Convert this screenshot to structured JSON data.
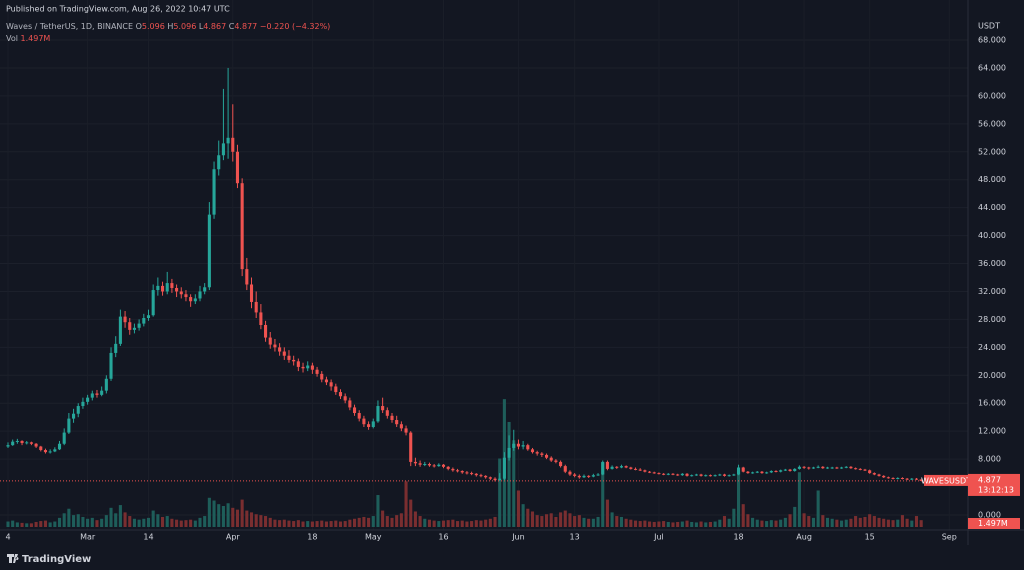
{
  "chart_data": {
    "type": "candlestick",
    "published": "Published on TradingView.com, Aug 26, 2022 10:47 UTC",
    "symbol": "Waves / TetherUS, 1D, BINANCE",
    "ohlc_letters": [
      "O",
      "H",
      "L",
      "C"
    ],
    "change": "−0.220 (−4.32%)",
    "volume_title": "Vol",
    "volume_label": "1.497M",
    "price_tag": "WAVESUSDT",
    "countdown": "13:12:13",
    "currency": "USDT",
    "brand": "TradingView",
    "up_color": "#26a69a",
    "down_color": "#ef5350",
    "volume_up_color": "#1e5e5a",
    "volume_down_color": "#7a2e30",
    "grid": true,
    "ylim": [
      0,
      68
    ],
    "yticks": [
      {
        "value": 0,
        "label": "0.000"
      },
      {
        "value": 8,
        "label": "8.000"
      },
      {
        "value": 12,
        "label": "12.000"
      },
      {
        "value": 16,
        "label": "16.000"
      },
      {
        "value": 20,
        "label": "20.000"
      },
      {
        "value": 24,
        "label": "24.000"
      },
      {
        "value": 28,
        "label": "28.000"
      },
      {
        "value": 32,
        "label": "32.000"
      },
      {
        "value": 36,
        "label": "36.000"
      },
      {
        "value": 40,
        "label": "40.000"
      },
      {
        "value": 44,
        "label": "44.000"
      },
      {
        "value": 48,
        "label": "48.000"
      },
      {
        "value": 52,
        "label": "52.000"
      },
      {
        "value": 56,
        "label": "56.000"
      },
      {
        "value": 60,
        "label": "60.000"
      },
      {
        "value": 64,
        "label": "64.000"
      },
      {
        "value": 68,
        "label": "68.000"
      }
    ],
    "volume_lim": [
      0,
      30
    ],
    "xlim": [
      0,
      205
    ],
    "xticks": [
      {
        "value": 0,
        "label": "4"
      },
      {
        "value": 17,
        "label": "Mar"
      },
      {
        "value": 30,
        "label": "14"
      },
      {
        "value": 48,
        "label": "Apr"
      },
      {
        "value": 65,
        "label": "18"
      },
      {
        "value": 78,
        "label": "May"
      },
      {
        "value": 93,
        "label": "16"
      },
      {
        "value": 109,
        "label": "Jun"
      },
      {
        "value": 121,
        "label": "13"
      },
      {
        "value": 139,
        "label": "Jul"
      },
      {
        "value": 156,
        "label": "18"
      },
      {
        "value": 170,
        "label": "Aug"
      },
      {
        "value": 184,
        "label": "15"
      },
      {
        "value": 201,
        "label": "Sep"
      }
    ],
    "candles": [
      [
        9.8,
        10.4,
        9.6,
        10.0,
        1.2
      ],
      [
        10.0,
        10.8,
        9.9,
        10.5,
        1.4
      ],
      [
        10.5,
        10.9,
        10.2,
        10.6,
        1.0
      ],
      [
        10.6,
        10.7,
        10.0,
        10.3,
        0.9
      ],
      [
        10.3,
        10.6,
        10.1,
        10.4,
        0.8
      ],
      [
        10.4,
        10.5,
        10.0,
        10.2,
        0.8
      ],
      [
        10.2,
        10.3,
        9.6,
        9.8,
        1.1
      ],
      [
        9.8,
        9.9,
        9.1,
        9.3,
        1.3
      ],
      [
        9.3,
        9.5,
        8.8,
        9.0,
        1.4
      ],
      [
        9.0,
        9.4,
        8.8,
        9.1,
        1.0
      ],
      [
        9.1,
        9.7,
        9.0,
        9.4,
        1.2
      ],
      [
        9.4,
        10.6,
        9.3,
        10.2,
        2.0
      ],
      [
        10.2,
        12.4,
        10.0,
        11.8,
        3.0
      ],
      [
        11.8,
        14.6,
        11.6,
        13.8,
        4.0
      ],
      [
        13.8,
        15.2,
        13.2,
        14.5,
        2.6
      ],
      [
        14.5,
        16.0,
        14.0,
        15.6,
        2.8
      ],
      [
        15.6,
        16.8,
        15.2,
        16.2,
        2.2
      ],
      [
        16.2,
        17.2,
        15.8,
        16.8,
        1.8
      ],
      [
        16.8,
        17.8,
        16.4,
        17.4,
        2.0
      ],
      [
        17.4,
        17.9,
        16.8,
        17.2,
        1.5
      ],
      [
        17.2,
        18.4,
        17.0,
        17.8,
        1.8
      ],
      [
        17.8,
        20.0,
        17.4,
        19.5,
        2.6
      ],
      [
        19.5,
        24.0,
        19.2,
        23.2,
        4.2
      ],
      [
        23.2,
        25.6,
        22.6,
        24.5,
        3.0
      ],
      [
        24.5,
        29.4,
        24.2,
        28.4,
        4.8
      ],
      [
        28.4,
        29.2,
        26.8,
        27.6,
        3.2
      ],
      [
        27.6,
        28.2,
        25.8,
        26.5,
        2.4
      ],
      [
        26.5,
        27.4,
        26.0,
        26.8,
        1.8
      ],
      [
        26.8,
        28.0,
        26.4,
        27.4,
        1.6
      ],
      [
        27.4,
        28.8,
        27.0,
        28.2,
        1.8
      ],
      [
        28.2,
        29.4,
        27.8,
        28.6,
        2.0
      ],
      [
        28.6,
        33.0,
        28.4,
        32.2,
        3.6
      ],
      [
        32.2,
        34.0,
        31.4,
        32.8,
        2.8
      ],
      [
        32.8,
        33.4,
        31.4,
        32.0,
        2.2
      ],
      [
        32.0,
        34.8,
        31.6,
        33.2,
        2.4
      ],
      [
        33.2,
        33.8,
        31.8,
        32.5,
        1.8
      ],
      [
        32.5,
        33.0,
        31.2,
        32.0,
        1.6
      ],
      [
        32.0,
        32.6,
        31.0,
        31.6,
        1.4
      ],
      [
        31.6,
        32.2,
        30.6,
        31.2,
        1.5
      ],
      [
        31.2,
        31.6,
        29.8,
        30.6,
        1.6
      ],
      [
        30.6,
        31.6,
        30.2,
        31.0,
        1.4
      ],
      [
        31.0,
        32.8,
        30.6,
        32.0,
        2.0
      ],
      [
        32.0,
        33.2,
        31.6,
        32.6,
        2.4
      ],
      [
        32.6,
        44.8,
        32.2,
        43.0,
        6.4
      ],
      [
        43.0,
        50.6,
        42.4,
        49.5,
        5.8
      ],
      [
        49.5,
        53.6,
        48.6,
        51.5,
        5.0
      ],
      [
        51.5,
        61.0,
        50.8,
        53.2,
        4.6
      ],
      [
        53.2,
        64.0,
        51.0,
        54.0,
        5.2
      ],
      [
        54.0,
        58.8,
        50.6,
        52.0,
        4.2
      ],
      [
        52.0,
        53.0,
        46.8,
        47.5,
        3.8
      ],
      [
        47.5,
        48.2,
        34.2,
        35.2,
        6.0
      ],
      [
        35.2,
        36.8,
        32.2,
        33.0,
        3.6
      ],
      [
        33.0,
        34.0,
        29.6,
        30.5,
        3.2
      ],
      [
        30.5,
        32.0,
        28.2,
        29.0,
        2.8
      ],
      [
        29.0,
        30.2,
        26.6,
        27.2,
        2.6
      ],
      [
        27.2,
        27.8,
        24.8,
        25.4,
        2.4
      ],
      [
        25.4,
        26.2,
        23.8,
        24.4,
        2.0
      ],
      [
        24.4,
        25.2,
        23.4,
        24.0,
        1.6
      ],
      [
        24.0,
        24.6,
        22.8,
        23.4,
        1.5
      ],
      [
        23.4,
        24.0,
        22.2,
        22.8,
        1.6
      ],
      [
        22.8,
        23.6,
        21.8,
        22.2,
        1.4
      ],
      [
        22.2,
        22.8,
        21.4,
        22.0,
        1.3
      ],
      [
        22.0,
        22.4,
        20.6,
        21.2,
        1.5
      ],
      [
        21.2,
        21.8,
        20.4,
        21.0,
        1.2
      ],
      [
        21.0,
        22.0,
        20.6,
        21.4,
        1.3
      ],
      [
        21.4,
        21.8,
        20.2,
        20.8,
        1.2
      ],
      [
        20.8,
        21.2,
        19.8,
        20.2,
        1.3
      ],
      [
        20.2,
        20.6,
        19.0,
        19.4,
        1.4
      ],
      [
        19.4,
        19.8,
        18.6,
        19.0,
        1.2
      ],
      [
        19.0,
        19.4,
        17.8,
        18.4,
        1.3
      ],
      [
        18.4,
        18.8,
        17.2,
        17.6,
        1.4
      ],
      [
        17.6,
        18.0,
        16.6,
        17.0,
        1.2
      ],
      [
        17.0,
        17.4,
        16.0,
        16.4,
        1.3
      ],
      [
        16.4,
        16.8,
        15.0,
        15.4,
        1.6
      ],
      [
        15.4,
        15.8,
        14.2,
        14.6,
        1.8
      ],
      [
        14.6,
        15.0,
        13.4,
        13.8,
        2.0
      ],
      [
        13.8,
        14.2,
        12.6,
        13.0,
        2.2
      ],
      [
        13.0,
        13.4,
        12.2,
        12.6,
        2.0
      ],
      [
        12.6,
        13.8,
        12.4,
        13.4,
        2.4
      ],
      [
        13.4,
        16.4,
        13.2,
        15.6,
        7.0
      ],
      [
        15.6,
        16.8,
        14.6,
        15.0,
        3.6
      ],
      [
        15.0,
        15.4,
        13.8,
        14.2,
        2.4
      ],
      [
        14.2,
        14.6,
        13.2,
        13.6,
        2.0
      ],
      [
        13.6,
        14.2,
        12.6,
        13.0,
        2.6
      ],
      [
        13.0,
        13.4,
        12.0,
        12.4,
        3.0
      ],
      [
        12.4,
        12.8,
        11.4,
        11.8,
        10.0
      ],
      [
        11.8,
        12.0,
        7.0,
        7.6,
        6.0
      ],
      [
        7.6,
        8.2,
        7.0,
        7.4,
        3.4
      ],
      [
        7.4,
        7.8,
        6.9,
        7.2,
        2.4
      ],
      [
        7.2,
        7.6,
        7.0,
        7.3,
        1.8
      ],
      [
        7.3,
        7.5,
        6.9,
        7.1,
        1.6
      ],
      [
        7.1,
        7.3,
        6.8,
        7.0,
        1.4
      ],
      [
        7.0,
        7.4,
        6.9,
        7.2,
        1.3
      ],
      [
        7.2,
        7.3,
        6.7,
        6.9,
        1.4
      ],
      [
        6.9,
        7.0,
        6.4,
        6.6,
        1.5
      ],
      [
        6.6,
        6.8,
        6.2,
        6.4,
        1.6
      ],
      [
        6.4,
        6.6,
        6.1,
        6.3,
        1.3
      ],
      [
        6.3,
        6.4,
        5.9,
        6.1,
        1.4
      ],
      [
        6.1,
        6.3,
        5.8,
        6.0,
        1.2
      ],
      [
        6.0,
        6.2,
        5.7,
        5.9,
        1.3
      ],
      [
        5.9,
        6.0,
        5.5,
        5.7,
        1.5
      ],
      [
        5.7,
        5.9,
        5.4,
        5.6,
        1.4
      ],
      [
        5.6,
        5.7,
        5.2,
        5.4,
        1.6
      ],
      [
        5.4,
        5.5,
        5.0,
        5.2,
        1.8
      ],
      [
        5.2,
        5.4,
        4.8,
        5.0,
        2.2
      ],
      [
        5.0,
        6.0,
        4.9,
        5.2,
        15.0
      ],
      [
        5.2,
        9.0,
        5.0,
        8.2,
        28.0
      ],
      [
        8.2,
        11.4,
        7.8,
        9.6,
        23.0
      ],
      [
        9.6,
        12.2,
        9.2,
        10.2,
        19.0
      ],
      [
        10.2,
        10.8,
        9.4,
        9.8,
        8.0
      ],
      [
        9.8,
        10.6,
        9.4,
        10.0,
        5.0
      ],
      [
        10.0,
        10.2,
        9.2,
        9.4,
        4.0
      ],
      [
        9.4,
        9.6,
        8.8,
        9.0,
        3.4
      ],
      [
        9.0,
        9.2,
        8.5,
        8.8,
        2.6
      ],
      [
        8.8,
        9.0,
        8.3,
        8.6,
        2.4
      ],
      [
        8.6,
        8.8,
        8.0,
        8.2,
        2.8
      ],
      [
        8.2,
        8.4,
        7.6,
        7.8,
        3.0
      ],
      [
        7.8,
        8.0,
        7.4,
        7.6,
        2.2
      ],
      [
        7.6,
        7.8,
        6.8,
        7.0,
        3.2
      ],
      [
        7.0,
        7.2,
        6.0,
        6.2,
        3.6
      ],
      [
        6.2,
        6.4,
        5.6,
        5.8,
        3.0
      ],
      [
        5.8,
        6.0,
        5.4,
        5.6,
        2.4
      ],
      [
        5.6,
        5.8,
        5.2,
        5.4,
        2.6
      ],
      [
        5.4,
        5.8,
        5.3,
        5.6,
        2.0
      ],
      [
        5.6,
        5.7,
        5.3,
        5.5,
        1.8
      ],
      [
        5.5,
        5.9,
        5.4,
        5.7,
        1.8
      ],
      [
        5.7,
        6.0,
        5.6,
        5.8,
        2.2
      ],
      [
        5.8,
        7.8,
        5.7,
        7.6,
        14.0
      ],
      [
        7.6,
        7.8,
        6.4,
        6.6,
        6.0
      ],
      [
        6.6,
        7.1,
        6.5,
        6.9,
        3.2
      ],
      [
        6.9,
        7.0,
        6.6,
        6.8,
        2.4
      ],
      [
        6.8,
        7.2,
        6.7,
        7.0,
        2.2
      ],
      [
        7.0,
        7.1,
        6.7,
        6.8,
        1.8
      ],
      [
        6.8,
        6.9,
        6.5,
        6.6,
        1.6
      ],
      [
        6.6,
        6.8,
        6.4,
        6.5,
        1.4
      ],
      [
        6.5,
        6.7,
        6.3,
        6.4,
        1.3
      ],
      [
        6.4,
        6.5,
        6.1,
        6.2,
        1.4
      ],
      [
        6.2,
        6.3,
        6.0,
        6.1,
        1.2
      ],
      [
        6.1,
        6.2,
        5.9,
        6.0,
        1.1
      ],
      [
        6.0,
        6.1,
        5.8,
        5.9,
        1.2
      ],
      [
        5.9,
        6.0,
        5.7,
        5.8,
        1.3
      ],
      [
        5.8,
        6.0,
        5.7,
        5.9,
        1.1
      ],
      [
        5.9,
        6.0,
        5.7,
        5.8,
        1.0
      ],
      [
        5.8,
        5.9,
        5.6,
        5.7,
        1.1
      ],
      [
        5.7,
        6.0,
        5.6,
        5.9,
        1.2
      ],
      [
        5.9,
        6.0,
        5.5,
        5.6,
        1.4
      ],
      [
        5.6,
        5.8,
        5.5,
        5.7,
        1.1
      ],
      [
        5.7,
        5.9,
        5.6,
        5.8,
        1.0
      ],
      [
        5.8,
        5.9,
        5.5,
        5.6,
        1.2
      ],
      [
        5.6,
        5.8,
        5.5,
        5.7,
        1.0
      ],
      [
        5.7,
        5.8,
        5.5,
        5.6,
        1.1
      ],
      [
        5.6,
        5.8,
        5.5,
        5.7,
        1.2
      ],
      [
        5.7,
        5.9,
        5.6,
        5.8,
        1.6
      ],
      [
        5.8,
        5.9,
        5.5,
        5.6,
        2.4
      ],
      [
        5.6,
        5.8,
        5.5,
        5.7,
        1.8
      ],
      [
        5.7,
        5.9,
        5.6,
        5.8,
        4.0
      ],
      [
        5.8,
        7.2,
        5.7,
        6.8,
        12.0
      ],
      [
        6.8,
        6.9,
        6.1,
        6.2,
        5.0
      ],
      [
        6.2,
        6.3,
        5.9,
        6.0,
        2.8
      ],
      [
        6.0,
        6.2,
        5.9,
        6.1,
        2.0
      ],
      [
        6.1,
        6.3,
        6.0,
        6.2,
        1.6
      ],
      [
        6.2,
        6.3,
        5.9,
        6.0,
        1.4
      ],
      [
        6.0,
        6.2,
        5.9,
        6.1,
        1.3
      ],
      [
        6.1,
        6.4,
        6.0,
        6.3,
        1.5
      ],
      [
        6.3,
        6.4,
        6.1,
        6.2,
        1.4
      ],
      [
        6.2,
        6.5,
        6.1,
        6.4,
        1.6
      ],
      [
        6.4,
        6.6,
        6.3,
        6.5,
        2.0
      ],
      [
        6.5,
        6.6,
        6.2,
        6.3,
        2.8
      ],
      [
        6.3,
        6.7,
        6.2,
        6.6,
        4.4
      ],
      [
        6.6,
        7.1,
        6.5,
        6.9,
        12.0
      ],
      [
        6.9,
        7.0,
        6.6,
        6.8,
        3.0
      ],
      [
        6.8,
        6.9,
        6.5,
        6.7,
        2.4
      ],
      [
        6.7,
        6.9,
        6.6,
        6.8,
        2.0
      ],
      [
        6.8,
        7.1,
        6.7,
        6.9,
        8.0
      ],
      [
        6.9,
        7.0,
        6.6,
        6.7,
        2.6
      ],
      [
        6.7,
        6.9,
        6.6,
        6.8,
        2.0
      ],
      [
        6.8,
        6.9,
        6.6,
        6.8,
        1.8
      ],
      [
        6.8,
        6.9,
        6.6,
        6.7,
        1.6
      ],
      [
        6.7,
        6.9,
        6.6,
        6.8,
        1.4
      ],
      [
        6.8,
        7.0,
        6.7,
        6.9,
        1.6
      ],
      [
        6.9,
        7.0,
        6.6,
        6.7,
        1.8
      ],
      [
        6.7,
        6.8,
        6.5,
        6.6,
        2.4
      ],
      [
        6.6,
        6.7,
        6.4,
        6.5,
        2.0
      ],
      [
        6.5,
        6.6,
        6.3,
        6.4,
        2.2
      ],
      [
        6.4,
        6.5,
        5.9,
        6.0,
        2.8
      ],
      [
        6.0,
        6.1,
        5.7,
        5.8,
        2.4
      ],
      [
        5.8,
        5.9,
        5.5,
        5.6,
        2.0
      ],
      [
        5.6,
        5.7,
        5.3,
        5.4,
        1.8
      ],
      [
        5.4,
        5.5,
        5.2,
        5.3,
        1.6
      ],
      [
        5.3,
        5.4,
        5.1,
        5.2,
        1.5
      ],
      [
        5.2,
        5.4,
        5.1,
        5.3,
        1.6
      ],
      [
        5.3,
        5.4,
        5.1,
        5.2,
        2.6
      ],
      [
        5.2,
        5.3,
        5.0,
        5.1,
        1.8
      ],
      [
        5.1,
        5.3,
        5.0,
        5.2,
        1.4
      ],
      [
        5.2,
        5.3,
        5.0,
        5.096,
        2.4
      ],
      [
        5.096,
        5.096,
        4.867,
        4.877,
        1.497
      ]
    ]
  }
}
